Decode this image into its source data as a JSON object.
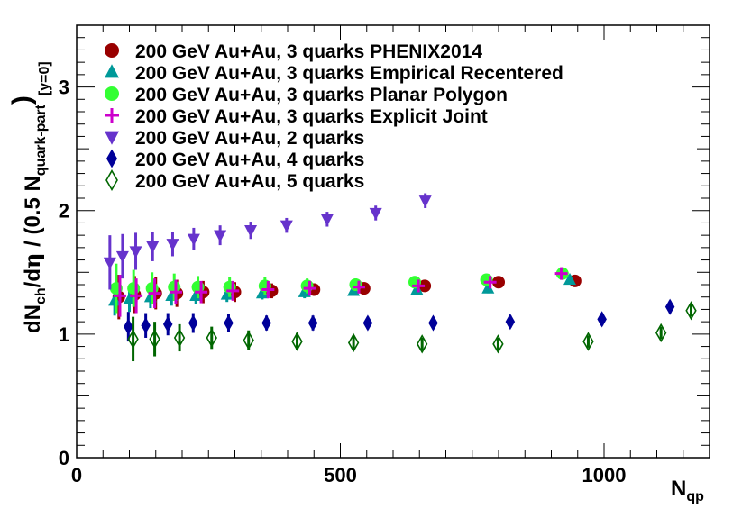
{
  "chart_data": {
    "type": "scatter",
    "title": "",
    "xlabel": "N_qp",
    "xlabel_main": "N",
    "xlabel_sub": "qp",
    "ylabel": "dN_ch/dη / (0.5 N_quark-part)_[y=0]",
    "ylabel_parts": {
      "d1": "dN",
      "ch": "ch",
      "slash_deta": "/d",
      "eta": "η",
      "mid": " / (0.5 N",
      "qp": "quark-part",
      "close": ")",
      "y0": "[y=0]"
    },
    "xlim": [
      0,
      1200
    ],
    "ylim": [
      0,
      3.5
    ],
    "xticks": [
      0,
      500,
      1000
    ],
    "xtick_labels": [
      "0",
      "500",
      "1000"
    ],
    "yticks": [
      0,
      1,
      2,
      3
    ],
    "ytick_labels": [
      "0",
      "1",
      "2",
      "3"
    ],
    "grid": false,
    "legend_position": "top-left",
    "series": [
      {
        "name": "200 GeV Au+Au, 3 quarks PHENIX2014",
        "marker": "circle",
        "color": "#990000",
        "x": [
          80,
          110,
          150,
          190,
          240,
          300,
          370,
          450,
          545,
          660,
          800,
          945
        ],
        "y": [
          1.3,
          1.32,
          1.33,
          1.33,
          1.34,
          1.34,
          1.35,
          1.36,
          1.37,
          1.39,
          1.42,
          1.43
        ],
        "err": [
          0.18,
          0.15,
          0.13,
          0.11,
          0.09,
          0.08,
          0.06,
          0.05,
          0.05,
          0.04,
          0.04,
          0.04
        ]
      },
      {
        "name": "200 GeV Au+Au, 3 quarks Empirical Recentered",
        "marker": "triangle-up",
        "color": "#009999",
        "x": [
          72,
          100,
          140,
          180,
          226,
          285,
          352,
          432,
          525,
          645,
          780,
          935
        ],
        "y": [
          1.27,
          1.28,
          1.3,
          1.31,
          1.31,
          1.32,
          1.33,
          1.34,
          1.35,
          1.36,
          1.37,
          1.44
        ],
        "err": [
          0.12,
          0.1,
          0.09,
          0.08,
          0.07,
          0.06,
          0.05,
          0.05,
          0.04,
          0.04,
          0.04,
          0.04
        ]
      },
      {
        "name": "200 GeV Au+Au, 3 quarks Planar Polygon",
        "marker": "circle",
        "color": "#33ff33",
        "x": [
          75,
          108,
          143,
          185,
          230,
          290,
          357,
          437,
          529,
          641,
          777,
          921
        ],
        "y": [
          1.37,
          1.37,
          1.37,
          1.38,
          1.38,
          1.38,
          1.39,
          1.39,
          1.4,
          1.42,
          1.44,
          1.49
        ],
        "err": [
          0.2,
          0.15,
          0.13,
          0.11,
          0.09,
          0.08,
          0.07,
          0.06,
          0.05,
          0.05,
          0.04,
          0.04
        ]
      },
      {
        "name": "200 GeV Au+Au, 3 quarks Explicit Joint",
        "marker": "plus",
        "color": "#cc00cc",
        "x": [
          82,
          113,
          148,
          188,
          236,
          296,
          363,
          442,
          535,
          648,
          784,
          919
        ],
        "y": [
          1.31,
          1.31,
          1.33,
          1.34,
          1.34,
          1.35,
          1.36,
          1.37,
          1.38,
          1.39,
          1.42,
          1.49
        ],
        "err": [
          0.17,
          0.14,
          0.12,
          0.1,
          0.09,
          0.08,
          0.07,
          0.06,
          0.05,
          0.05,
          0.04,
          0.04
        ]
      },
      {
        "name": "200 GeV Au+Au, 2 quarks",
        "marker": "triangle-down",
        "color": "#6633cc",
        "x": [
          63,
          87,
          112,
          144,
          182,
          222,
          272,
          330,
          398,
          475,
          567,
          661
        ],
        "y": [
          1.58,
          1.63,
          1.67,
          1.71,
          1.73,
          1.77,
          1.8,
          1.84,
          1.88,
          1.93,
          1.98,
          2.08
        ],
        "err": [
          0.22,
          0.18,
          0.15,
          0.12,
          0.1,
          0.09,
          0.08,
          0.07,
          0.06,
          0.06,
          0.06,
          0.06
        ]
      },
      {
        "name": "200 GeV Au+Au, 4 quarks",
        "marker": "diamond",
        "color": "#000099",
        "x": [
          98,
          131,
          173,
          221,
          288,
          360,
          448,
          552,
          676,
          822,
          996,
          1125
        ],
        "y": [
          1.06,
          1.07,
          1.08,
          1.09,
          1.09,
          1.09,
          1.09,
          1.09,
          1.09,
          1.1,
          1.12,
          1.22
        ],
        "err": [
          0.12,
          0.1,
          0.09,
          0.08,
          0.07,
          0.06,
          0.06,
          0.05,
          0.05,
          0.05,
          0.05,
          0.05
        ]
      },
      {
        "name": "200 GeV Au+Au, 5 quarks",
        "marker": "diamond-open",
        "color": "#006600",
        "x": [
          107,
          148,
          195,
          256,
          326,
          418,
          525,
          655,
          799,
          970,
          1108,
          1165
        ],
        "y": [
          0.96,
          0.96,
          0.97,
          0.97,
          0.95,
          0.94,
          0.93,
          0.92,
          0.92,
          0.94,
          1.01,
          1.19
        ],
        "err": [
          0.18,
          0.14,
          0.11,
          0.09,
          0.08,
          0.07,
          0.06,
          0.05,
          0.05,
          0.05,
          0.05,
          0.05
        ]
      }
    ]
  }
}
